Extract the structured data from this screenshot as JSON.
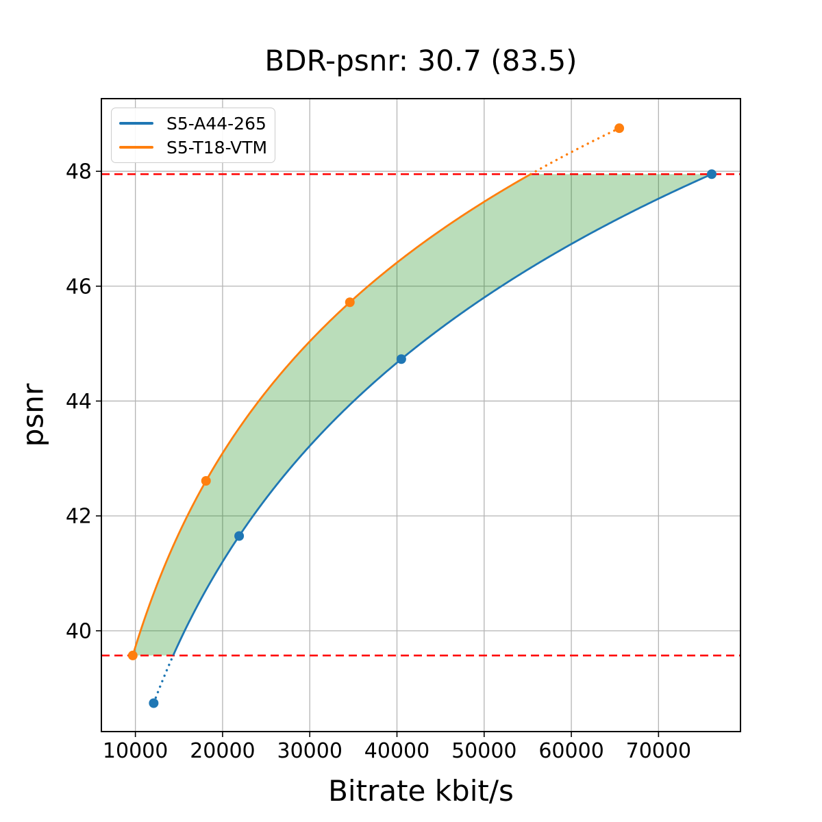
{
  "chart_data": {
    "type": "line",
    "title": "BDR-psnr: 30.7 (83.5)",
    "xlabel": "Bitrate kbit/s",
    "ylabel": "psnr",
    "xlim": [
      6100,
      79400
    ],
    "ylim": [
      38.245,
      49.265
    ],
    "xticks": [
      10000,
      20000,
      30000,
      40000,
      50000,
      60000,
      70000
    ],
    "yticks": [
      40,
      42,
      44,
      46,
      48
    ],
    "grid": true,
    "grid_color": "#b4b4b4",
    "spine_color": "#000000",
    "legend_position": "upper-left",
    "overlap_psnr_range": [
      39.57,
      47.95
    ],
    "series": [
      {
        "name": "S5-A44-265",
        "color": "#1f77b4",
        "points": [
          [
            12100,
            38.74
          ],
          [
            21900,
            41.65
          ],
          [
            40500,
            44.73
          ],
          [
            76100,
            47.95
          ]
        ]
      },
      {
        "name": "S5-T18-VTM",
        "color": "#ff7f0e",
        "points": [
          [
            9700,
            39.57
          ],
          [
            18100,
            42.61
          ],
          [
            34600,
            45.72
          ],
          [
            65500,
            48.75
          ]
        ]
      }
    ],
    "reference_lines": [
      {
        "y": 39.57,
        "color": "#ff0000",
        "style": "dashed"
      },
      {
        "y": 47.95,
        "color": "#ff0000",
        "style": "dashed"
      }
    ],
    "fill_between": {
      "color": "#008000",
      "opacity": 0.27
    }
  }
}
